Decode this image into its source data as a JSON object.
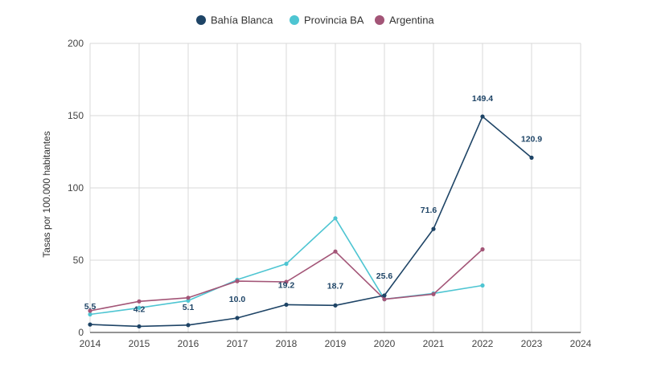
{
  "chart_data": {
    "type": "line",
    "title": "",
    "xlabel": "",
    "ylabel": "Tasas por 100.000 habitantes",
    "xlim": [
      2014,
      2024
    ],
    "ylim": [
      0,
      200
    ],
    "x_ticks": [
      "2014",
      "2015",
      "2016",
      "2017",
      "2018",
      "2019",
      "2020",
      "2021",
      "2022",
      "2023",
      "2024"
    ],
    "y_ticks": [
      "0",
      "50",
      "100",
      "150",
      "200"
    ],
    "grid": true,
    "legend_position": "top",
    "series": [
      {
        "name": "Bahía Blanca",
        "color": "#1e4466",
        "x": [
          2014,
          2015,
          2016,
          2017,
          2018,
          2019,
          2020,
          2021,
          2022,
          2023
        ],
        "values": [
          5.5,
          4.2,
          5.1,
          10.0,
          19.2,
          18.7,
          25.6,
          71.6,
          149.4,
          120.9
        ],
        "labels": [
          "5.5",
          "4.2",
          "5.1",
          "10.0",
          "19.2",
          "18.7",
          "25.6",
          "71.6",
          "149.4",
          "120.9"
        ]
      },
      {
        "name": "Provincia BA",
        "color": "#4ec5d2",
        "x": [
          2014,
          2015,
          2016,
          2017,
          2018,
          2019,
          2020,
          2021,
          2022
        ],
        "values": [
          12.5,
          17,
          22,
          36.5,
          47.5,
          79,
          23,
          27,
          32.5
        ]
      },
      {
        "name": "Argentina",
        "color": "#a35577",
        "x": [
          2014,
          2015,
          2016,
          2017,
          2018,
          2019,
          2020,
          2021,
          2022
        ],
        "values": [
          15,
          21.5,
          24,
          35.5,
          35,
          56,
          23,
          26.5,
          57.5
        ]
      }
    ]
  }
}
